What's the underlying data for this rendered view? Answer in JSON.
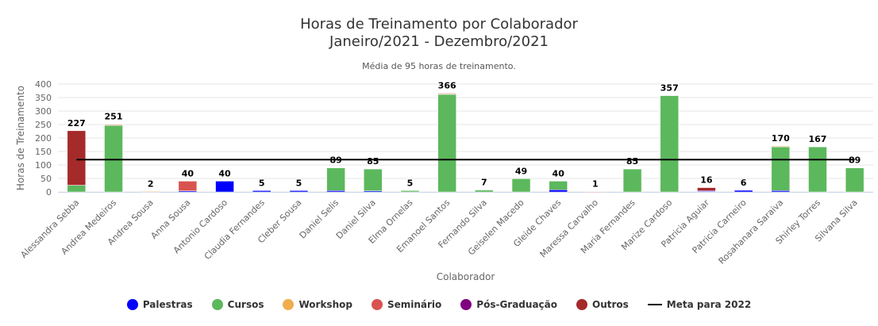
{
  "header": {
    "title_line1": "Horas de Treinamento por Colaborador",
    "title_line2": "Janeiro/2021 - Dezembro/2021",
    "subtitle": "Média de 95 horas de treinamento."
  },
  "chart_data": {
    "type": "bar",
    "stacked": true,
    "xlabel": "Colaborador",
    "ylabel": "Horas de Treinamento",
    "ylim": [
      0,
      400
    ],
    "yticks": [
      0,
      50,
      100,
      150,
      200,
      250,
      300,
      350,
      400
    ],
    "grid": true,
    "legend_position": "bottom",
    "categories": [
      "Alessandra Sebba",
      "Andrea Medeiros",
      "Andrea Sousa",
      "Anna Sousa",
      "Antonio Cardoso",
      "Claudia Fernandes",
      "Cleber Sousa",
      "Daniel Selis",
      "Daniel Silva",
      "Elma Ornelas",
      "Emanoel Santos",
      "Fernando Silva",
      "Geiselen Macedo",
      "Gleide Chaves",
      "Maressa Carvalho",
      "Maria Fernandes",
      "Marize Cardoso",
      "Patricia Aguiar",
      "Patricia Carneiro",
      "Rosahanara Saraiva",
      "Shirley Torres",
      "Silvana Silva"
    ],
    "totals": [
      227,
      251,
      2,
      40,
      40,
      5,
      5,
      89,
      85,
      5,
      366,
      7,
      49,
      40,
      1,
      85,
      357,
      16,
      6,
      170,
      167,
      89
    ],
    "series": [
      {
        "name": "Palestras",
        "color": "#0000ff",
        "values": [
          0,
          0,
          0,
          4,
          40,
          5,
          5,
          5,
          4,
          0,
          0,
          0,
          0,
          8,
          0,
          0,
          0,
          2,
          6,
          5,
          0,
          0
        ]
      },
      {
        "name": "Cursos",
        "color": "#5cb85c",
        "values": [
          25,
          247,
          0,
          0,
          0,
          0,
          0,
          84,
          81,
          5,
          362,
          7,
          49,
          32,
          0,
          85,
          357,
          0,
          0,
          162,
          167,
          89
        ]
      },
      {
        "name": "Workshop",
        "color": "#f0ad4e",
        "values": [
          0,
          2,
          2,
          0,
          0,
          0,
          0,
          0,
          0,
          0,
          2,
          0,
          0,
          0,
          0,
          0,
          0,
          0,
          0,
          3,
          0,
          0
        ]
      },
      {
        "name": "Seminário",
        "color": "#d9534f",
        "values": [
          0,
          0,
          0,
          36,
          0,
          0,
          0,
          0,
          0,
          0,
          0,
          0,
          0,
          0,
          1,
          0,
          0,
          0,
          0,
          0,
          0,
          0
        ]
      },
      {
        "name": "Pós-Graduação",
        "color": "#800080",
        "values": [
          0,
          0,
          0,
          0,
          0,
          0,
          0,
          0,
          0,
          0,
          0,
          0,
          0,
          0,
          0,
          0,
          0,
          3,
          0,
          0,
          0,
          0
        ]
      },
      {
        "name": "Outros",
        "color": "#a52a2a",
        "values": [
          202,
          2,
          0,
          0,
          0,
          0,
          0,
          0,
          0,
          0,
          2,
          0,
          0,
          0,
          0,
          0,
          0,
          11,
          0,
          0,
          0,
          0
        ]
      }
    ],
    "target_line": {
      "name": "Meta para 2022",
      "value": 120,
      "color": "#000000"
    }
  }
}
